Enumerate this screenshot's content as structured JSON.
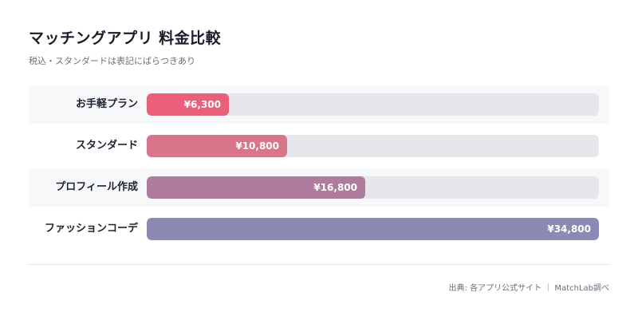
{
  "header": {
    "title": "マッチングアプリ 料金比較",
    "subtitle": "税込・スタンダードは表記にばらつきあり"
  },
  "chart_data": {
    "type": "bar",
    "orientation": "horizontal",
    "title": "マッチングアプリ 料金比較",
    "subtitle": "税込・スタンダードは表記にばらつきあり",
    "categories": [
      "お手軽プラン",
      "スタンダード",
      "プロフィール作成",
      "ファッションコーデ"
    ],
    "values": [
      6300,
      10800,
      16800,
      34800
    ],
    "value_labels": [
      "¥6,300",
      "¥10,800",
      "¥16,800",
      "¥34,800"
    ],
    "xlim": [
      0,
      34800
    ],
    "colors": [
      "#ea5f79",
      "#d87589",
      "#b07c9e",
      "#8b8ab5"
    ],
    "track_color": "#e6e7eb",
    "grid": false,
    "legend": "none"
  },
  "footer": {
    "source": "出典: 各アプリ公式サイト ｜ MatchLab調べ"
  }
}
